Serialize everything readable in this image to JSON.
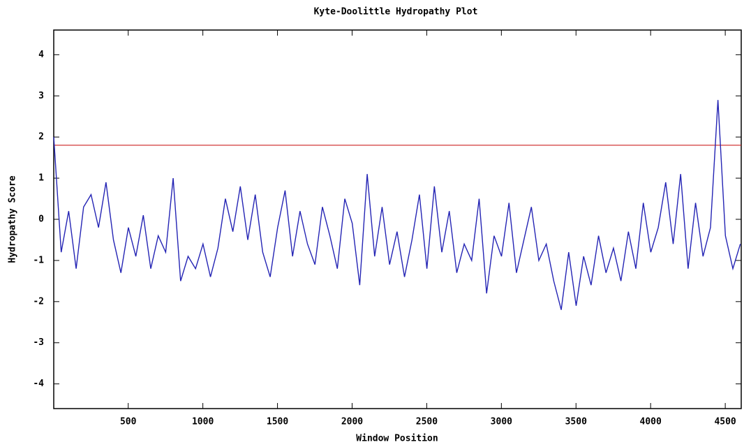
{
  "chart_data": {
    "type": "line",
    "title": "Kyte-Doolittle Hydropathy Plot",
    "x_label": "Window Position",
    "y_label": "Hydropathy Score",
    "x": [
      1,
      51,
      101,
      151,
      201,
      251,
      301,
      351,
      401,
      451,
      501,
      551,
      601,
      651,
      701,
      751,
      801,
      851,
      901,
      951,
      1001,
      1051,
      1101,
      1151,
      1201,
      1251,
      1301,
      1351,
      1401,
      1451,
      1501,
      1551,
      1601,
      1651,
      1701,
      1751,
      1801,
      1851,
      1901,
      1951,
      2001,
      2051,
      2101,
      2151,
      2201,
      2251,
      2301,
      2351,
      2401,
      2451,
      2501,
      2551,
      2601,
      2651,
      2701,
      2751,
      2801,
      2851,
      2901,
      2951,
      3001,
      3051,
      3101,
      3151,
      3201,
      3251,
      3301,
      3351,
      3401,
      3451,
      3501,
      3551,
      3601,
      3651,
      3701,
      3751,
      3801,
      3851,
      3901,
      3951,
      4001,
      4051,
      4101,
      4151,
      4201,
      4251,
      4301,
      4351,
      4401,
      4451,
      4501,
      4551,
      4601
    ],
    "series": [
      {
        "color": "#2424b4",
        "values": [
          2.0,
          -0.8,
          0.2,
          -1.2,
          0.3,
          0.6,
          -0.2,
          0.9,
          -0.5,
          -1.3,
          -0.2,
          -0.9,
          0.1,
          -1.2,
          -0.4,
          -0.8,
          1.0,
          -1.5,
          -0.9,
          -1.2,
          -0.6,
          -1.4,
          -0.7,
          0.5,
          -0.3,
          0.8,
          -0.5,
          0.6,
          -0.8,
          -1.4,
          -0.2,
          0.7,
          -0.9,
          0.2,
          -0.6,
          -1.1,
          0.3,
          -0.4,
          -1.2,
          0.5,
          -0.1,
          -1.6,
          1.1,
          -0.9,
          0.3,
          -1.1,
          -0.3,
          -1.4,
          -0.5,
          0.6,
          -1.2,
          0.8,
          -0.8,
          0.2,
          -1.3,
          -0.6,
          -1.0,
          0.5,
          -1.8,
          -0.4,
          -0.9,
          0.4,
          -1.3,
          -0.5,
          0.3,
          -1.0,
          -0.6,
          -1.5,
          -2.2,
          -0.8,
          -2.1,
          -0.9,
          -1.6,
          -0.4,
          -1.3,
          -0.7,
          -1.5,
          -0.3,
          -1.2,
          0.4,
          -0.8,
          -0.2,
          0.9,
          -0.6,
          1.1,
          -1.2,
          0.4,
          -0.9,
          -0.2,
          2.9,
          -0.4,
          -1.2,
          -0.6
        ]
      }
    ],
    "hline": {
      "value": 1.8,
      "color": "#cc2020"
    },
    "xlim": [
      1,
      4607
    ],
    "ylim": [
      -4.6,
      4.6
    ],
    "xticks": [
      500,
      1000,
      1500,
      2000,
      2500,
      3000,
      3500,
      4000,
      4500
    ],
    "yticks": [
      -4,
      -3,
      -2,
      -1,
      0,
      1,
      2,
      3,
      4
    ]
  }
}
